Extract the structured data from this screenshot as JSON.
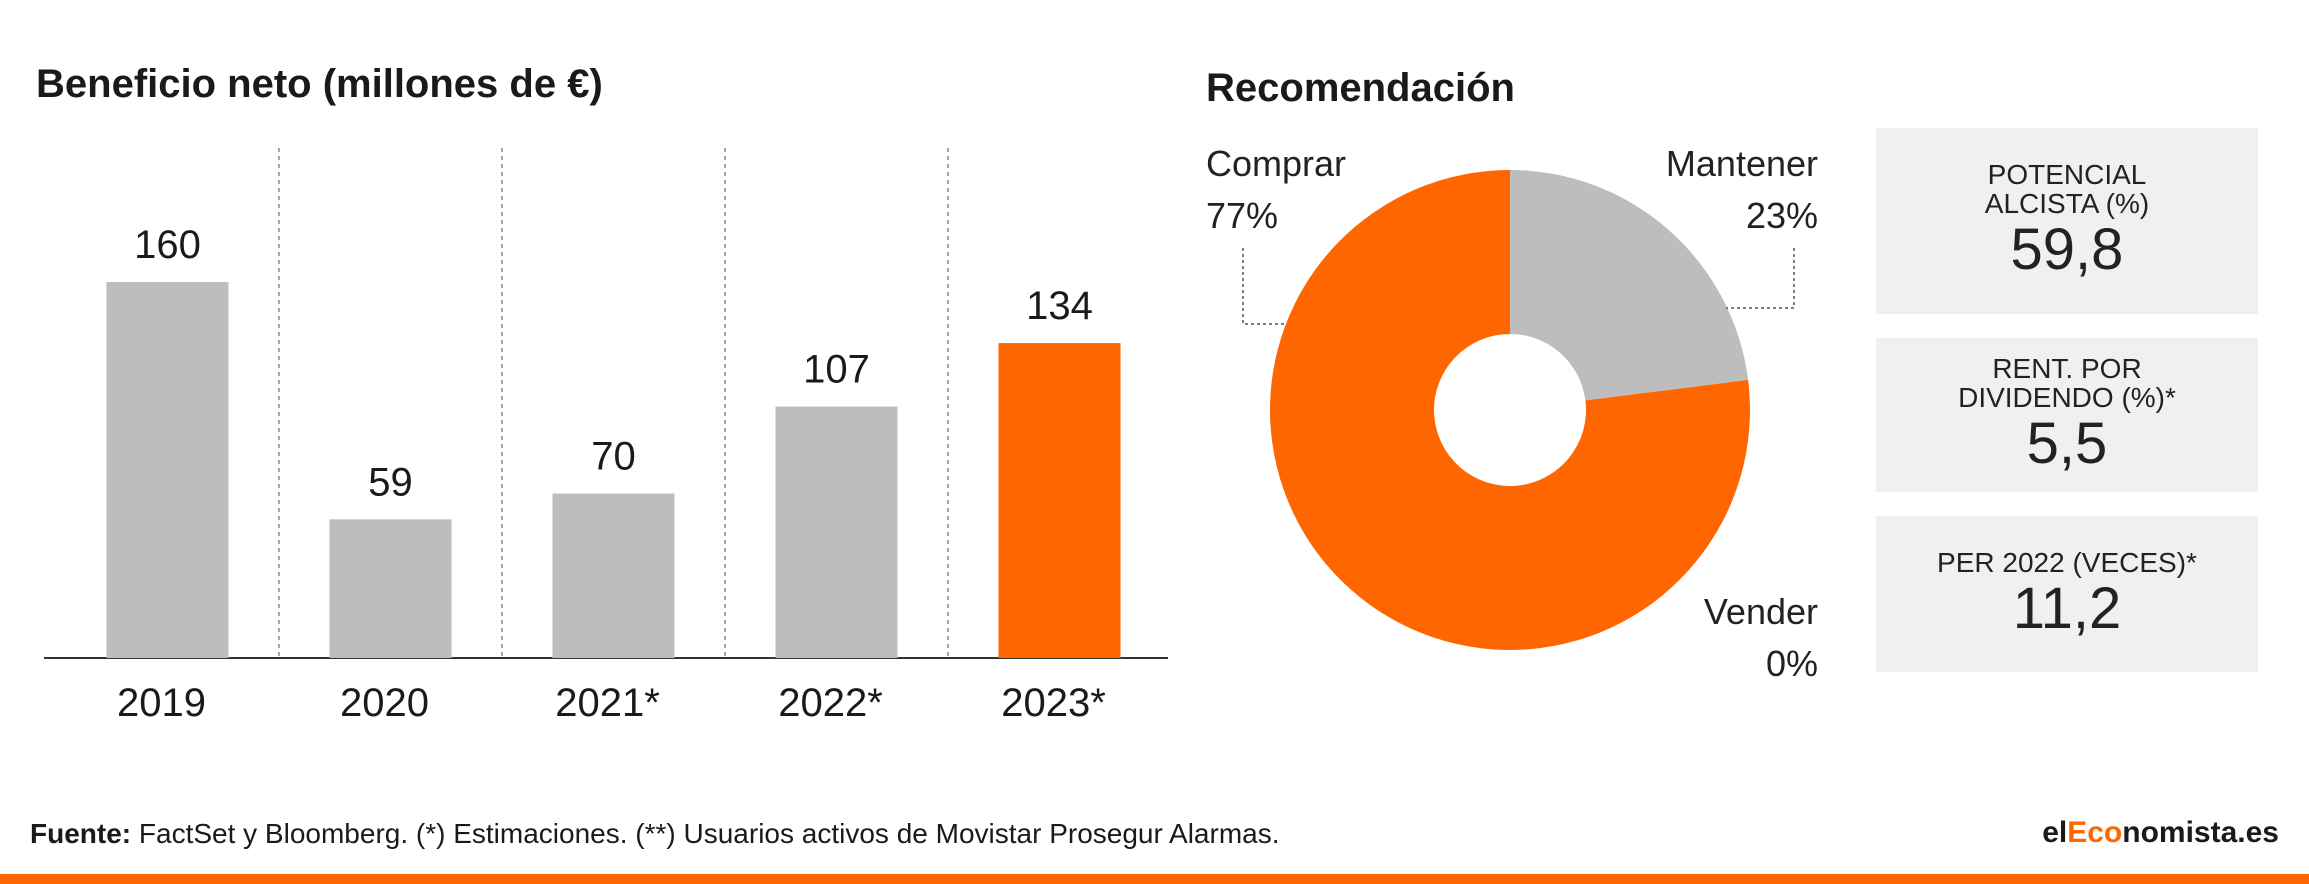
{
  "colors": {
    "accent": "#ff6600",
    "bar_default": "#bdbdbd",
    "pie_grey": "#bdbdbd",
    "panel_bg": "#f0f0f0"
  },
  "bar_chart_title": "Beneficio neto (millones de €)",
  "pie_chart_title": "Recomendación",
  "chart_data": [
    {
      "type": "bar",
      "title": "Beneficio neto (millones de €)",
      "categories": [
        "2019",
        "2020",
        "2021*",
        "2022*",
        "2023*"
      ],
      "values": [
        160,
        59,
        70,
        107,
        134
      ],
      "highlight_index": 4,
      "ylim": [
        0,
        200
      ],
      "grid": false
    },
    {
      "type": "pie",
      "title": "Recomendación",
      "style": "donut",
      "slices": [
        {
          "label": "Comprar",
          "display": "77%",
          "value": 77,
          "color": "#ff6600"
        },
        {
          "label": "Mantener",
          "display": "23%",
          "value": 23,
          "color": "#bdbdbd"
        },
        {
          "label": "Vender",
          "display": "0%",
          "value": 0,
          "color": "#ffffff"
        }
      ]
    }
  ],
  "indicators": [
    {
      "label_line1": "POTENCIAL",
      "label_line2": "ALCISTA (%)",
      "value": "59,8"
    },
    {
      "label_line1": "RENT. POR",
      "label_line2": "DIVIDENDO (%)*",
      "value": "5,5"
    },
    {
      "label_line1": "PER 2022 (VECES)*",
      "label_line2": "",
      "value": "11,2"
    }
  ],
  "footer": {
    "source_label": "Fuente:",
    "source_text": " FactSet y Bloomberg. (*) Estimaciones. (**) Usuarios activos de Movistar Prosegur Alarmas."
  },
  "brand": {
    "part1": "el",
    "part2": "Eco",
    "part3": "nomista.es"
  }
}
